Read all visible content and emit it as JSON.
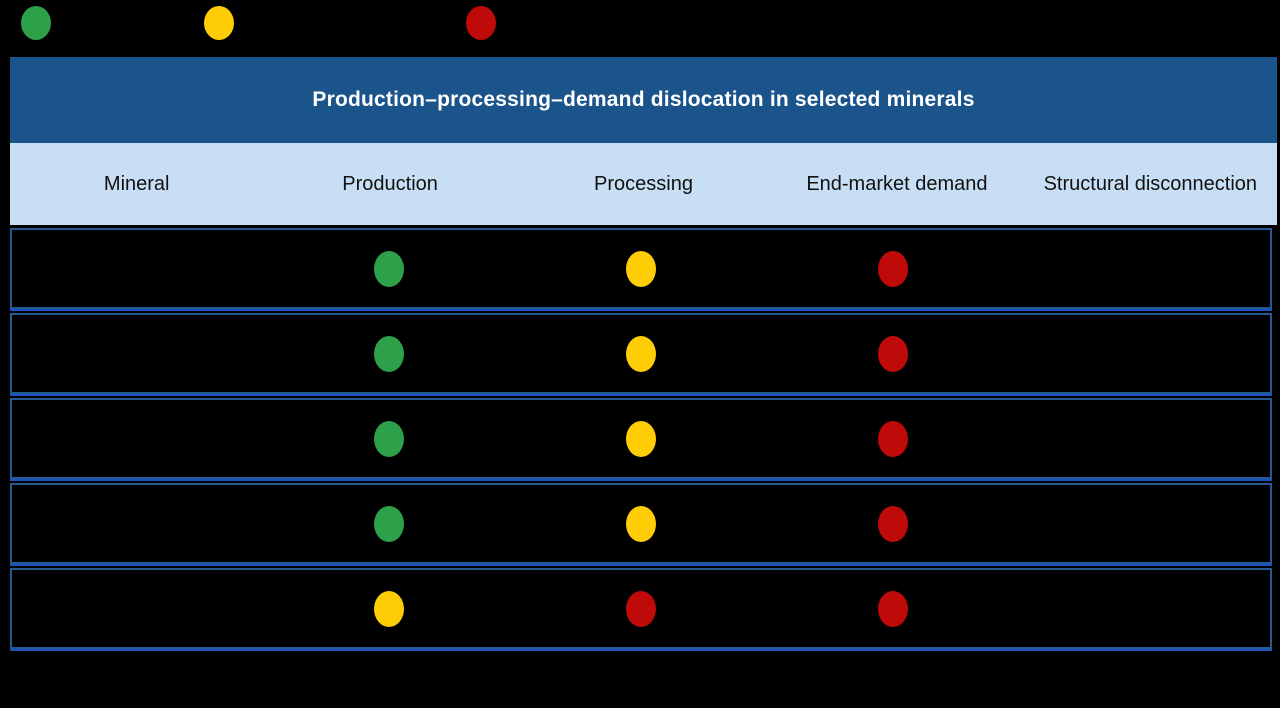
{
  "colors": {
    "background": "#000000",
    "title_bar": "#1b548a",
    "title_text": "#ffffff",
    "header_bg": "#c8def5",
    "header_text": "#111111",
    "row_bg": "#000000",
    "row_border": "#25598f",
    "row_separator": "#1d52c4",
    "green": "#2ca14a",
    "yellow": "#ffcd05",
    "red": "#bf0a0a"
  },
  "legend": {
    "items": [
      {
        "icon": "green-dot-icon",
        "color_name": "green"
      },
      {
        "icon": "yellow-dot-icon",
        "color_name": "yellow"
      },
      {
        "icon": "red-dot-icon",
        "color_name": "red"
      }
    ]
  },
  "table": {
    "title": "Production–processing–demand dislocation in selected minerals",
    "columns": [
      "Mineral",
      "Production",
      "Processing",
      "End-market demand",
      "Structural disconnection"
    ],
    "rows": [
      {
        "dots": [
          "green",
          "yellow",
          "red"
        ]
      },
      {
        "dots": [
          "green",
          "yellow",
          "red"
        ]
      },
      {
        "dots": [
          "green",
          "yellow",
          "red"
        ]
      },
      {
        "dots": [
          "green",
          "yellow",
          "red"
        ]
      },
      {
        "dots": [
          "yellow",
          "red",
          "red"
        ]
      }
    ]
  },
  "chart_data": {
    "type": "table",
    "title": "Production–processing–demand dislocation in selected minerals",
    "columns": [
      "Mineral",
      "Production",
      "Processing",
      "End-market demand",
      "Structural disconnection"
    ],
    "legend_colors": [
      "green",
      "yellow",
      "red"
    ],
    "rows": [
      {
        "mineral": "",
        "production": "green",
        "processing": "yellow",
        "end_market_demand": "red",
        "structural_disconnection": ""
      },
      {
        "mineral": "",
        "production": "green",
        "processing": "yellow",
        "end_market_demand": "red",
        "structural_disconnection": ""
      },
      {
        "mineral": "",
        "production": "green",
        "processing": "yellow",
        "end_market_demand": "red",
        "structural_disconnection": ""
      },
      {
        "mineral": "",
        "production": "green",
        "processing": "yellow",
        "end_market_demand": "red",
        "structural_disconnection": ""
      },
      {
        "mineral": "",
        "production": "yellow",
        "processing": "red",
        "end_market_demand": "red",
        "structural_disconnection": ""
      }
    ]
  }
}
